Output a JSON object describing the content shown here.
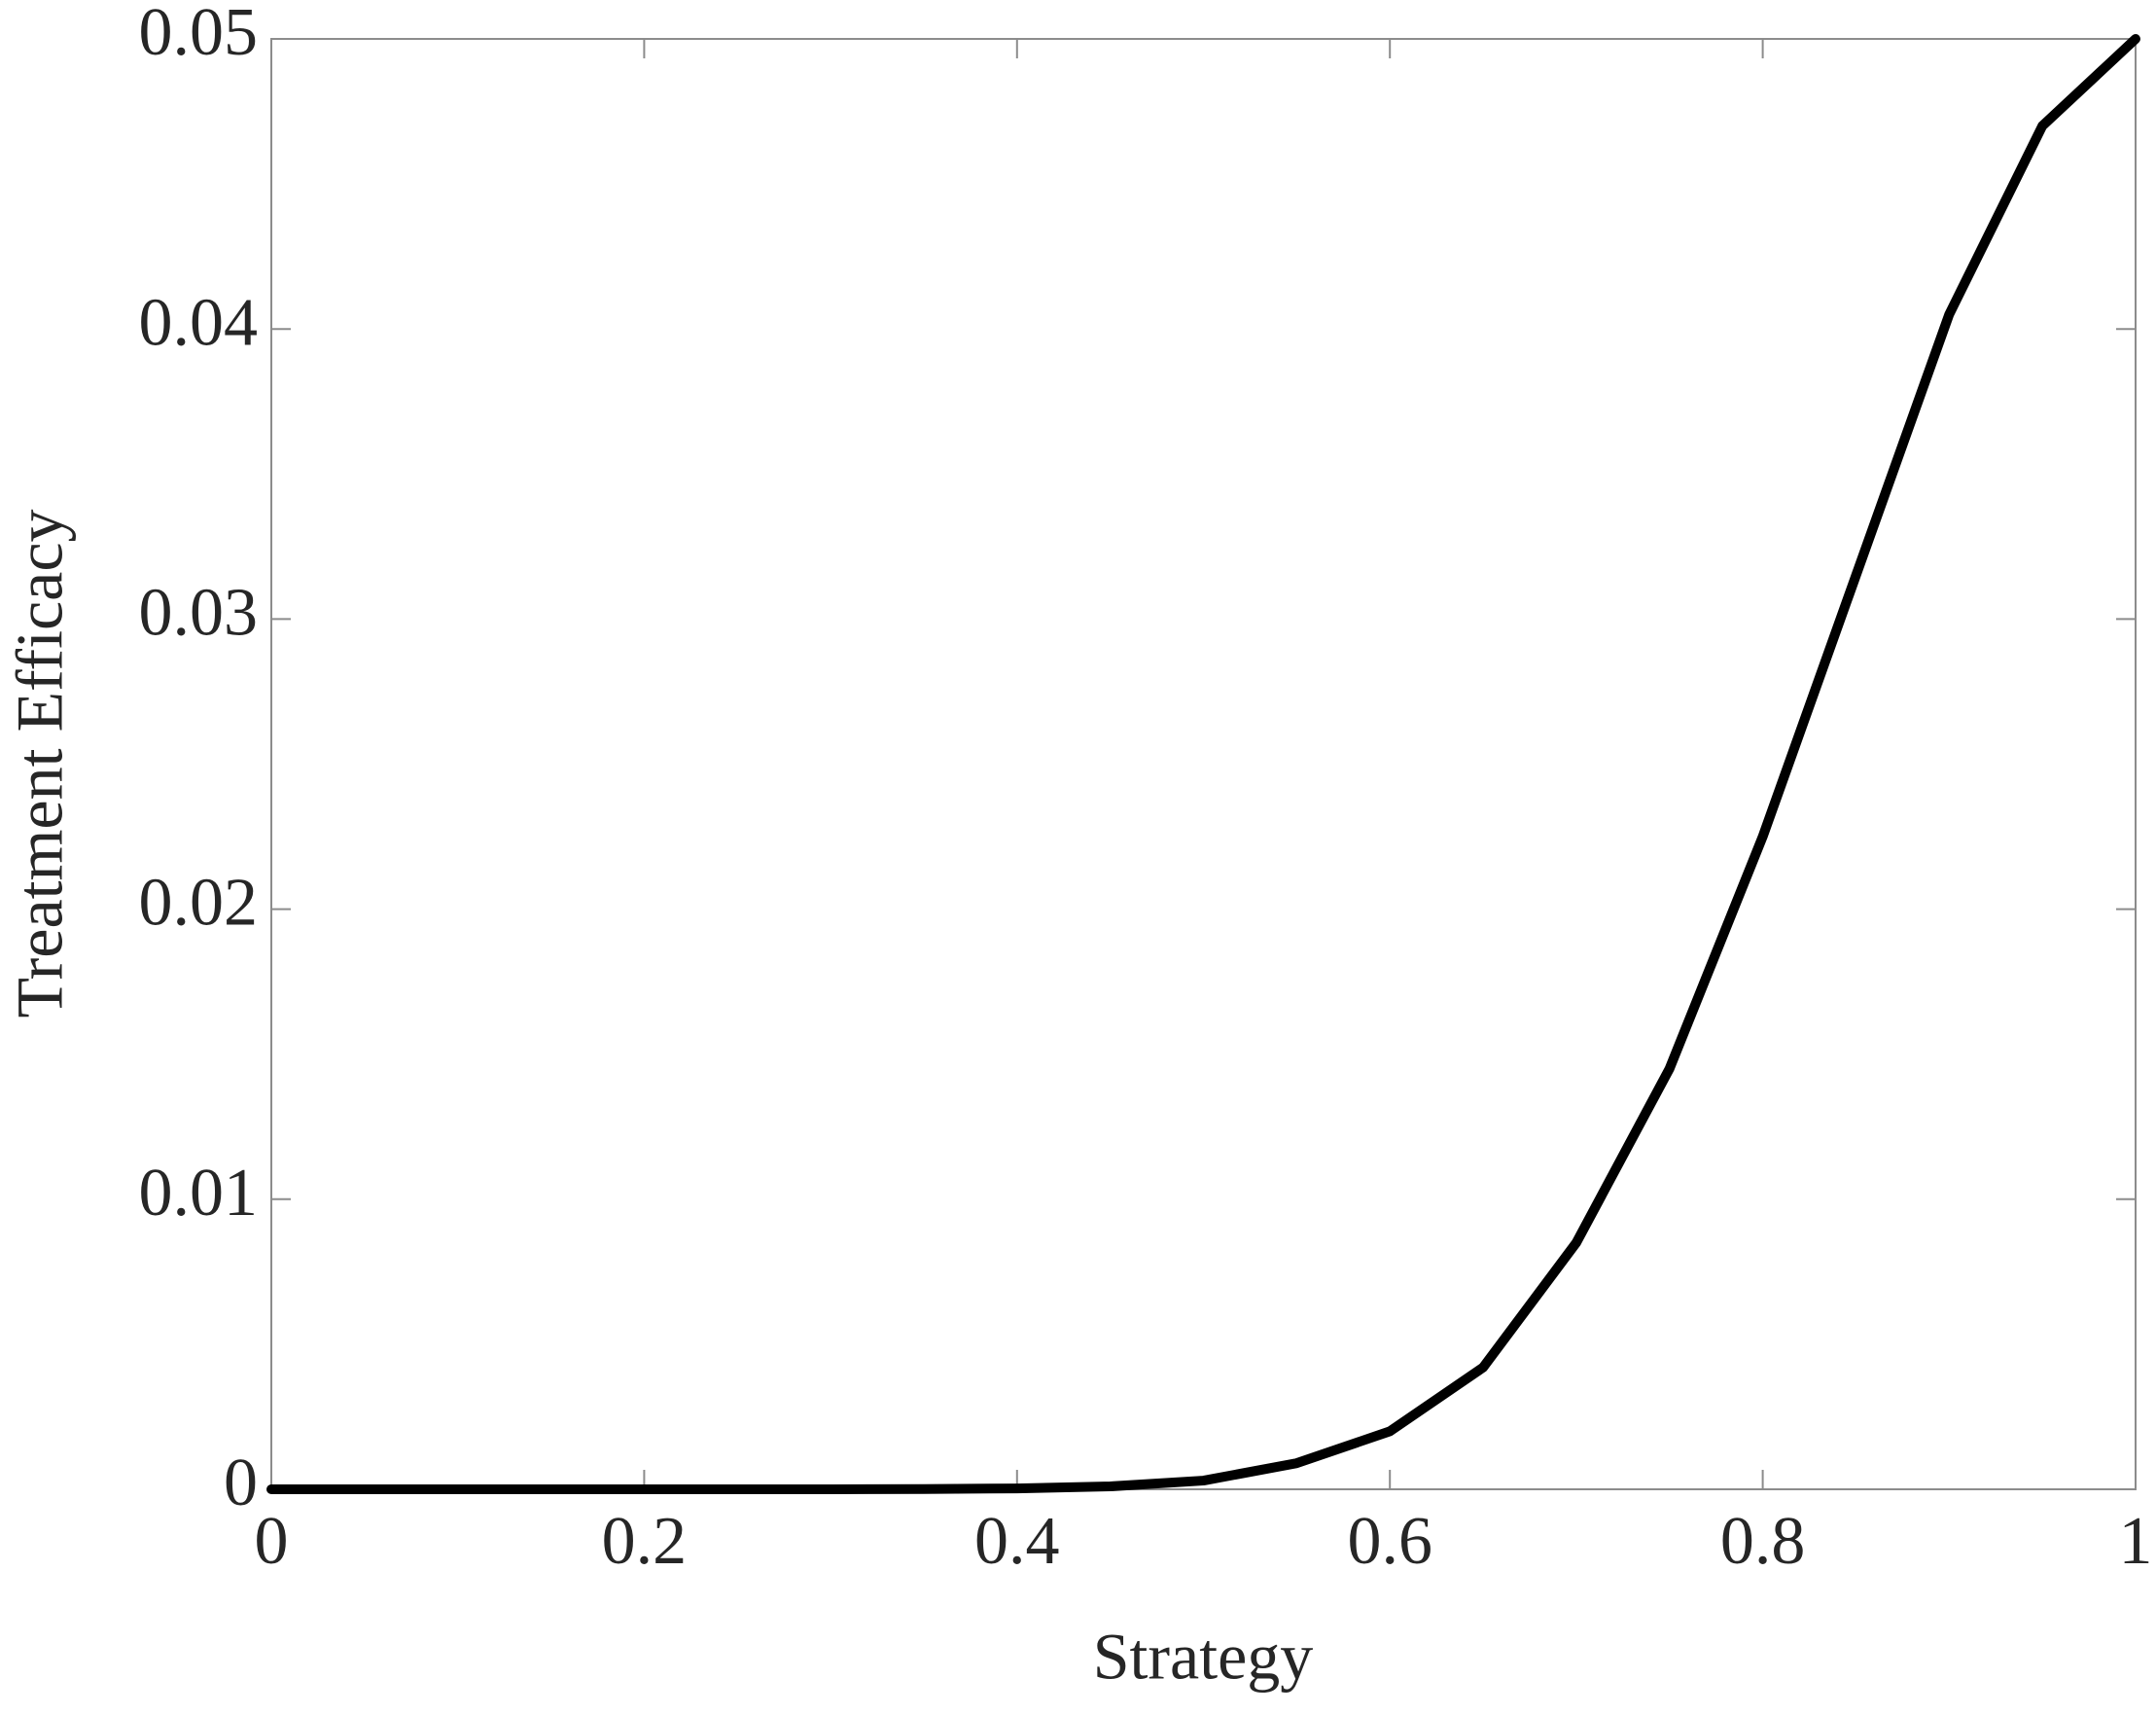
{
  "chart_data": {
    "type": "line",
    "x_label": "Strategy",
    "y_label": "Treatment Efficacy",
    "x": [
      0,
      0.05,
      0.1,
      0.15,
      0.2,
      0.25,
      0.3,
      0.35,
      0.4,
      0.45,
      0.5,
      0.55,
      0.6,
      0.65,
      0.7,
      0.75,
      0.8,
      0.85,
      0.9,
      0.95,
      1
    ],
    "series": [
      {
        "color": "#000000",
        "values": [
          0,
          0,
          0,
          0,
          0,
          0,
          0,
          1e-05,
          3e-05,
          0.0001,
          0.0003,
          0.0009,
          0.002,
          0.0042,
          0.0085,
          0.0145,
          0.0225,
          0.0315,
          0.0405,
          0.047,
          0.05
        ]
      }
    ],
    "xlim": [
      0,
      1
    ],
    "ylim": [
      0,
      0.05
    ],
    "xticks": [
      0,
      0.2,
      0.4,
      0.6,
      0.8,
      1
    ],
    "yticks": [
      0,
      0.01,
      0.02,
      0.03,
      0.04,
      0.05
    ],
    "grid": false
  }
}
